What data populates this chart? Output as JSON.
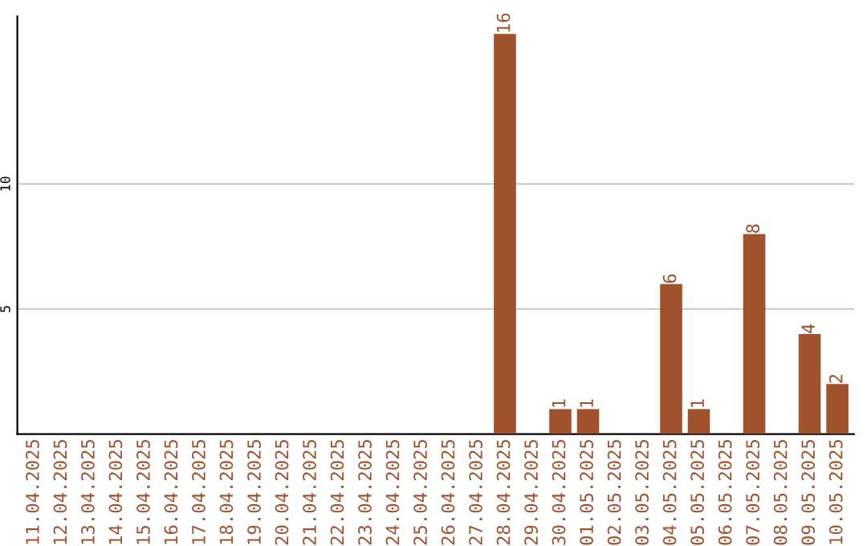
{
  "chart_data": {
    "type": "bar",
    "categories": [
      "11.04.2025",
      "12.04.2025",
      "13.04.2025",
      "14.04.2025",
      "15.04.2025",
      "16.04.2025",
      "17.04.2025",
      "18.04.2025",
      "19.04.2025",
      "20.04.2025",
      "21.04.2025",
      "22.04.2025",
      "23.04.2025",
      "24.04.2025",
      "25.04.2025",
      "26.04.2025",
      "27.04.2025",
      "28.04.2025",
      "29.04.2025",
      "30.04.2025",
      "01.05.2025",
      "02.05.2025",
      "03.05.2025",
      "04.05.2025",
      "05.05.2025",
      "06.05.2025",
      "07.05.2025",
      "08.05.2025",
      "09.05.2025",
      "10.05.2025"
    ],
    "values": [
      0,
      0,
      0,
      0,
      0,
      0,
      0,
      0,
      0,
      0,
      0,
      0,
      0,
      0,
      0,
      0,
      0,
      16,
      0,
      1,
      1,
      0,
      0,
      6,
      1,
      0,
      8,
      0,
      4,
      2
    ],
    "value_labels": [
      null,
      null,
      null,
      null,
      null,
      null,
      null,
      null,
      null,
      null,
      null,
      null,
      null,
      null,
      null,
      null,
      null,
      "16",
      null,
      "1",
      "1",
      null,
      null,
      "6",
      "1",
      null,
      "8",
      null,
      "4",
      "2"
    ],
    "color": "#a0522d",
    "ylim": [
      0,
      16.7
    ],
    "yticks": [
      5,
      10
    ],
    "grid": "y",
    "legend": false
  }
}
